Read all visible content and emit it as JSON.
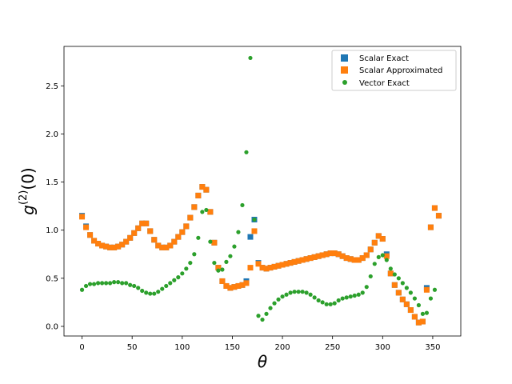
{
  "chart_data": {
    "type": "scatter",
    "title": "",
    "xlabel": "θ",
    "ylabel": "g(2)(0)",
    "ylabel_parts": {
      "base": "g",
      "sup": "(2)",
      "rest": "(0)"
    },
    "xlim": [
      -18,
      378
    ],
    "ylim": [
      -0.1,
      2.91
    ],
    "xticks": [
      0,
      50,
      100,
      150,
      200,
      250,
      300,
      350
    ],
    "yticks": [
      0.0,
      0.5,
      1.0,
      1.5,
      2.0,
      2.5
    ],
    "xtick_labels": [
      "0",
      "50",
      "100",
      "150",
      "200",
      "250",
      "300",
      "350"
    ],
    "ytick_labels": [
      "0.0",
      "0.5",
      "1.0",
      "1.5",
      "2.0",
      "2.5"
    ],
    "grid": false,
    "legend_position": "top-right",
    "series": [
      {
        "name": "Scalar Exact",
        "marker": "square",
        "color": "#1f77b4",
        "points": [
          [
            0,
            1.15
          ],
          [
            4,
            1.04
          ],
          [
            8,
            0.95
          ],
          [
            12,
            0.89
          ],
          [
            16,
            0.86
          ],
          [
            20,
            0.84
          ],
          [
            24,
            0.83
          ],
          [
            28,
            0.82
          ],
          [
            32,
            0.82
          ],
          [
            36,
            0.83
          ],
          [
            40,
            0.85
          ],
          [
            44,
            0.88
          ],
          [
            48,
            0.92
          ],
          [
            52,
            0.97
          ],
          [
            56,
            1.02
          ],
          [
            60,
            1.07
          ],
          [
            64,
            1.07
          ],
          [
            68,
            0.99
          ],
          [
            72,
            0.9
          ],
          [
            76,
            0.84
          ],
          [
            80,
            0.82
          ],
          [
            84,
            0.82
          ],
          [
            88,
            0.84
          ],
          [
            92,
            0.88
          ],
          [
            96,
            0.93
          ],
          [
            100,
            0.98
          ],
          [
            104,
            1.04
          ],
          [
            108,
            1.13
          ],
          [
            112,
            1.24
          ],
          [
            116,
            1.36
          ],
          [
            120,
            1.45
          ],
          [
            124,
            1.42
          ],
          [
            128,
            1.19
          ],
          [
            132,
            0.87
          ],
          [
            136,
            0.61
          ],
          [
            140,
            0.47
          ],
          [
            144,
            0.42
          ],
          [
            148,
            0.4
          ],
          [
            152,
            0.41
          ],
          [
            156,
            0.42
          ],
          [
            160,
            0.43
          ],
          [
            164,
            0.47
          ],
          [
            168,
            0.93
          ],
          [
            172,
            1.11
          ],
          [
            176,
            0.66
          ],
          [
            180,
            0.61
          ],
          [
            184,
            0.6
          ],
          [
            188,
            0.61
          ],
          [
            192,
            0.62
          ],
          [
            196,
            0.63
          ],
          [
            200,
            0.64
          ],
          [
            204,
            0.65
          ],
          [
            208,
            0.66
          ],
          [
            212,
            0.67
          ],
          [
            216,
            0.68
          ],
          [
            220,
            0.69
          ],
          [
            224,
            0.7
          ],
          [
            228,
            0.71
          ],
          [
            232,
            0.72
          ],
          [
            236,
            0.73
          ],
          [
            240,
            0.74
          ],
          [
            244,
            0.75
          ],
          [
            248,
            0.76
          ],
          [
            252,
            0.76
          ],
          [
            256,
            0.75
          ],
          [
            260,
            0.73
          ],
          [
            264,
            0.71
          ],
          [
            268,
            0.7
          ],
          [
            272,
            0.69
          ],
          [
            276,
            0.69
          ],
          [
            280,
            0.71
          ],
          [
            284,
            0.74
          ],
          [
            288,
            0.8
          ],
          [
            292,
            0.87
          ],
          [
            296,
            0.94
          ],
          [
            300,
            0.91
          ],
          [
            304,
            0.75
          ],
          [
            308,
            0.55
          ],
          [
            312,
            0.43
          ],
          [
            316,
            0.35
          ],
          [
            320,
            0.28
          ],
          [
            324,
            0.23
          ],
          [
            328,
            0.17
          ],
          [
            332,
            0.1
          ],
          [
            336,
            0.04
          ],
          [
            340,
            0.05
          ],
          [
            344,
            0.4
          ],
          [
            348,
            1.03
          ],
          [
            352,
            1.23
          ],
          [
            356,
            1.15
          ]
        ]
      },
      {
        "name": "Scalar Approximated",
        "marker": "square",
        "color": "#ff7f0e",
        "points": [
          [
            0,
            1.14
          ],
          [
            4,
            1.03
          ],
          [
            8,
            0.95
          ],
          [
            12,
            0.89
          ],
          [
            16,
            0.86
          ],
          [
            20,
            0.84
          ],
          [
            24,
            0.83
          ],
          [
            28,
            0.82
          ],
          [
            32,
            0.82
          ],
          [
            36,
            0.83
          ],
          [
            40,
            0.85
          ],
          [
            44,
            0.88
          ],
          [
            48,
            0.92
          ],
          [
            52,
            0.97
          ],
          [
            56,
            1.02
          ],
          [
            60,
            1.07
          ],
          [
            64,
            1.07
          ],
          [
            68,
            0.99
          ],
          [
            72,
            0.9
          ],
          [
            76,
            0.84
          ],
          [
            80,
            0.82
          ],
          [
            84,
            0.82
          ],
          [
            88,
            0.84
          ],
          [
            92,
            0.88
          ],
          [
            96,
            0.93
          ],
          [
            100,
            0.98
          ],
          [
            104,
            1.04
          ],
          [
            108,
            1.13
          ],
          [
            112,
            1.24
          ],
          [
            116,
            1.36
          ],
          [
            120,
            1.45
          ],
          [
            124,
            1.42
          ],
          [
            128,
            1.19
          ],
          [
            132,
            0.87
          ],
          [
            136,
            0.61
          ],
          [
            140,
            0.47
          ],
          [
            144,
            0.42
          ],
          [
            148,
            0.4
          ],
          [
            152,
            0.41
          ],
          [
            156,
            0.42
          ],
          [
            160,
            0.43
          ],
          [
            164,
            0.45
          ],
          [
            168,
            0.61
          ],
          [
            172,
            0.99
          ],
          [
            176,
            0.65
          ],
          [
            180,
            0.61
          ],
          [
            184,
            0.6
          ],
          [
            188,
            0.61
          ],
          [
            192,
            0.62
          ],
          [
            196,
            0.63
          ],
          [
            200,
            0.64
          ],
          [
            204,
            0.65
          ],
          [
            208,
            0.66
          ],
          [
            212,
            0.67
          ],
          [
            216,
            0.68
          ],
          [
            220,
            0.69
          ],
          [
            224,
            0.7
          ],
          [
            228,
            0.71
          ],
          [
            232,
            0.72
          ],
          [
            236,
            0.73
          ],
          [
            240,
            0.74
          ],
          [
            244,
            0.75
          ],
          [
            248,
            0.76
          ],
          [
            252,
            0.76
          ],
          [
            256,
            0.75
          ],
          [
            260,
            0.73
          ],
          [
            264,
            0.71
          ],
          [
            268,
            0.7
          ],
          [
            272,
            0.69
          ],
          [
            276,
            0.69
          ],
          [
            280,
            0.71
          ],
          [
            284,
            0.74
          ],
          [
            288,
            0.8
          ],
          [
            292,
            0.87
          ],
          [
            296,
            0.94
          ],
          [
            300,
            0.91
          ],
          [
            304,
            0.73
          ],
          [
            308,
            0.55
          ],
          [
            312,
            0.43
          ],
          [
            316,
            0.35
          ],
          [
            320,
            0.28
          ],
          [
            324,
            0.23
          ],
          [
            328,
            0.17
          ],
          [
            332,
            0.1
          ],
          [
            336,
            0.04
          ],
          [
            340,
            0.05
          ],
          [
            344,
            0.38
          ],
          [
            348,
            1.03
          ],
          [
            352,
            1.23
          ],
          [
            356,
            1.15
          ]
        ]
      },
      {
        "name": "Vector Exact",
        "marker": "circle",
        "color": "#2ca02c",
        "points": [
          [
            0,
            0.38
          ],
          [
            4,
            0.42
          ],
          [
            8,
            0.44
          ],
          [
            12,
            0.44
          ],
          [
            16,
            0.45
          ],
          [
            20,
            0.45
          ],
          [
            24,
            0.45
          ],
          [
            28,
            0.45
          ],
          [
            32,
            0.46
          ],
          [
            36,
            0.46
          ],
          [
            40,
            0.45
          ],
          [
            44,
            0.45
          ],
          [
            48,
            0.43
          ],
          [
            52,
            0.42
          ],
          [
            56,
            0.4
          ],
          [
            60,
            0.37
          ],
          [
            64,
            0.35
          ],
          [
            68,
            0.34
          ],
          [
            72,
            0.34
          ],
          [
            76,
            0.36
          ],
          [
            80,
            0.39
          ],
          [
            84,
            0.42
          ],
          [
            88,
            0.45
          ],
          [
            92,
            0.48
          ],
          [
            96,
            0.51
          ],
          [
            100,
            0.55
          ],
          [
            104,
            0.6
          ],
          [
            108,
            0.66
          ],
          [
            112,
            0.75
          ],
          [
            116,
            0.92
          ],
          [
            120,
            1.19
          ],
          [
            124,
            1.21
          ],
          [
            128,
            0.88
          ],
          [
            132,
            0.66
          ],
          [
            136,
            0.58
          ],
          [
            140,
            0.59
          ],
          [
            144,
            0.67
          ],
          [
            148,
            0.73
          ],
          [
            152,
            0.83
          ],
          [
            156,
            0.98
          ],
          [
            160,
            1.26
          ],
          [
            164,
            1.81
          ],
          [
            168,
            2.79
          ],
          [
            172,
            1.11
          ],
          [
            176,
            0.11
          ],
          [
            180,
            0.07
          ],
          [
            184,
            0.13
          ],
          [
            188,
            0.19
          ],
          [
            192,
            0.24
          ],
          [
            196,
            0.28
          ],
          [
            200,
            0.31
          ],
          [
            204,
            0.33
          ],
          [
            208,
            0.35
          ],
          [
            212,
            0.36
          ],
          [
            216,
            0.36
          ],
          [
            220,
            0.36
          ],
          [
            224,
            0.35
          ],
          [
            228,
            0.33
          ],
          [
            232,
            0.3
          ],
          [
            236,
            0.27
          ],
          [
            240,
            0.25
          ],
          [
            244,
            0.23
          ],
          [
            248,
            0.23
          ],
          [
            252,
            0.24
          ],
          [
            256,
            0.27
          ],
          [
            260,
            0.29
          ],
          [
            264,
            0.3
          ],
          [
            268,
            0.31
          ],
          [
            272,
            0.32
          ],
          [
            276,
            0.33
          ],
          [
            280,
            0.35
          ],
          [
            284,
            0.41
          ],
          [
            288,
            0.52
          ],
          [
            292,
            0.65
          ],
          [
            296,
            0.72
          ],
          [
            300,
            0.74
          ],
          [
            304,
            0.69
          ],
          [
            308,
            0.6
          ],
          [
            312,
            0.54
          ],
          [
            316,
            0.5
          ],
          [
            320,
            0.45
          ],
          [
            324,
            0.4
          ],
          [
            328,
            0.35
          ],
          [
            332,
            0.29
          ],
          [
            336,
            0.22
          ],
          [
            340,
            0.13
          ],
          [
            344,
            0.14
          ],
          [
            348,
            0.29
          ],
          [
            352,
            0.38
          ]
        ]
      }
    ]
  }
}
